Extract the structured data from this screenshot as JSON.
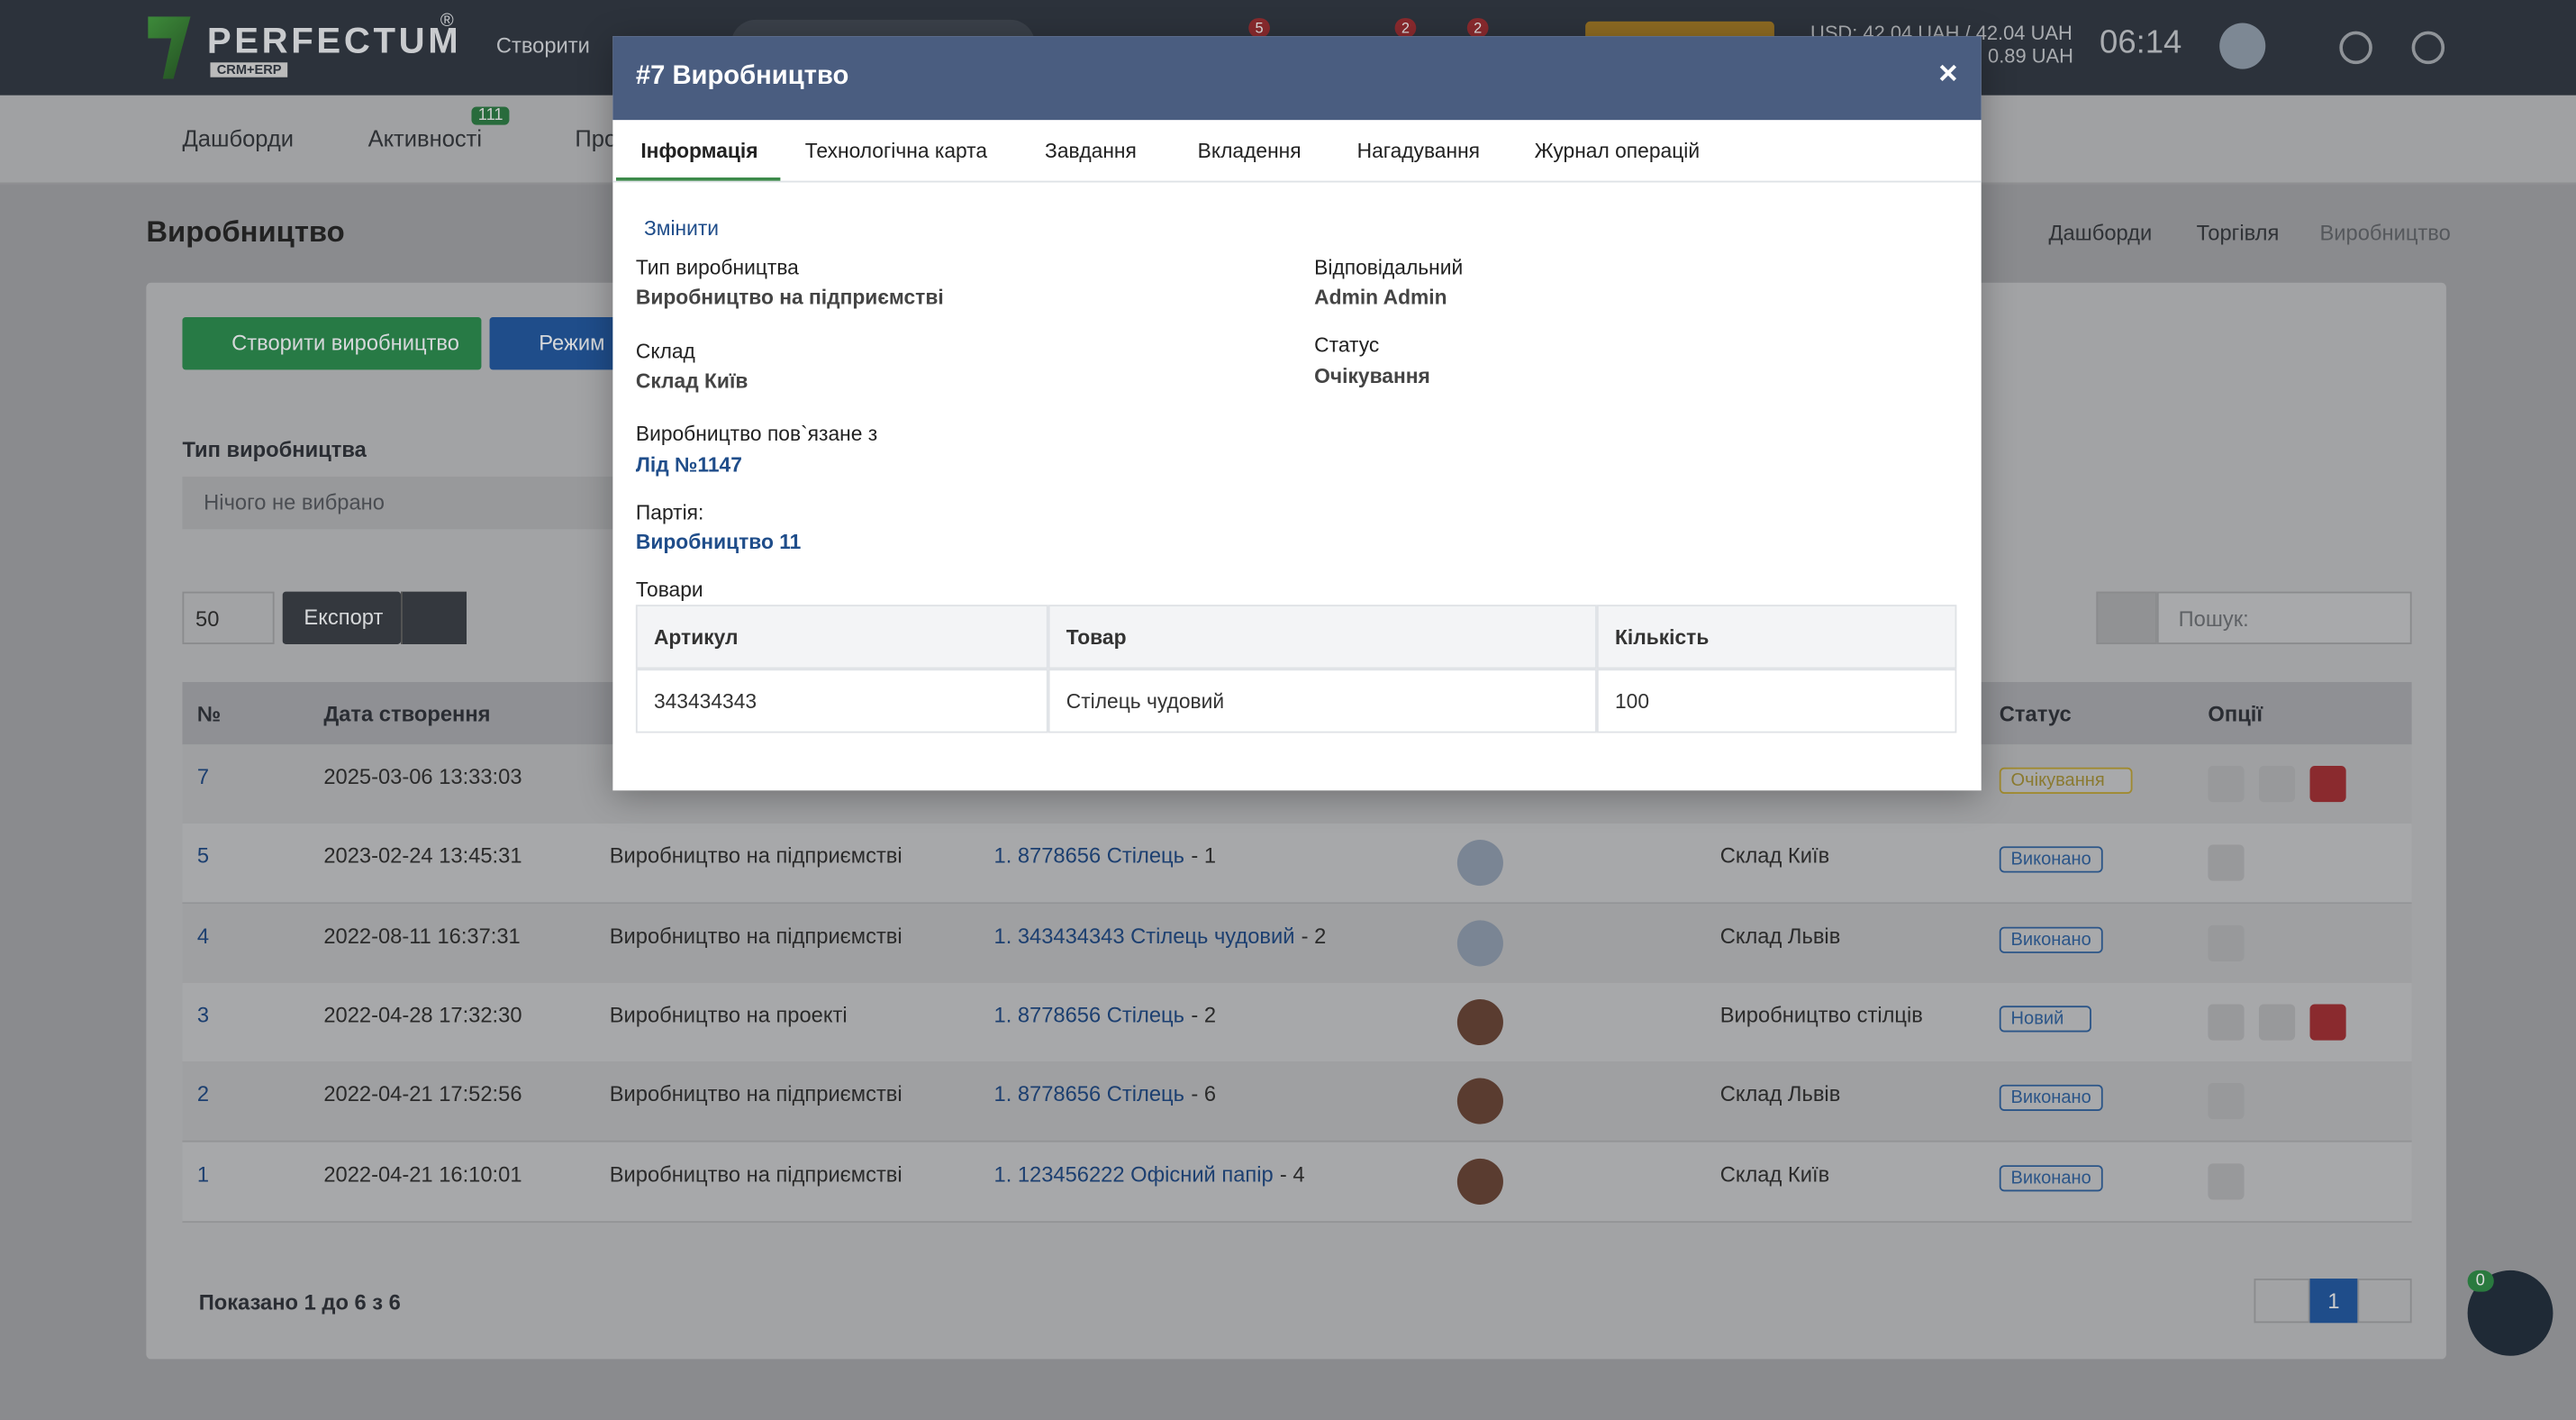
{
  "navbar": {
    "logo": "PERFECTUM",
    "logo_reg": "®",
    "logo_sub": "CRM+ERP",
    "create": "Створити",
    "badges": [
      "5",
      "2",
      "2"
    ],
    "currency_1": "USD: 42.04 UAH / 42.04 UAH",
    "currency_2": "0.89 UAH",
    "time": "06:14"
  },
  "subnav": {
    "items": [
      "Дашборди",
      "Активності",
      "Про"
    ],
    "activity_badge": "111"
  },
  "page": {
    "title": "Виробництво",
    "breadcrumbs": [
      "Дашборди",
      "Торгівля",
      "Виробництво"
    ],
    "create_button": "Створити виробництво",
    "mode_button": "Режим",
    "filter_label": "Тип виробництва",
    "filter_placeholder": "Нічого не вибрано",
    "page_size": "50",
    "export": "Експорт",
    "search_placeholder": "Пошук:",
    "table": {
      "headers": {
        "id": "№",
        "date": "Дата створення",
        "status": "Статус",
        "options": "Опції"
      },
      "rows": [
        {
          "id": "7",
          "date": "2025-03-06 13:33:03",
          "status": "Очікування"
        },
        {
          "id": "5",
          "date": "2023-02-24 13:45:31",
          "type": "Виробництво на підприємстві",
          "product": "1. 8778656 Стілець",
          "qty": "- 1",
          "warehouse": "Склад Київ",
          "status": "Виконано"
        },
        {
          "id": "4",
          "date": "2022-08-11 16:37:31",
          "type": "Виробництво на підприємстві",
          "product": "1. 343434343 Стілець чудовий",
          "qty": "- 2",
          "warehouse": "Склад Львів",
          "status": "Виконано"
        },
        {
          "id": "3",
          "date": "2022-04-28 17:32:30",
          "type": "Виробництво на проекті",
          "product": "1. 8778656 Стілець",
          "qty": "- 2",
          "warehouse": "Виробництво стілців",
          "status": "Новий"
        },
        {
          "id": "2",
          "date": "2022-04-21 17:52:56",
          "type": "Виробництво на підприємстві",
          "product": "1. 8778656 Стілець",
          "qty": "- 6",
          "warehouse": "Склад Львів",
          "status": "Виконано"
        },
        {
          "id": "1",
          "date": "2022-04-21 16:10:01",
          "type": "Виробництво на підприємстві",
          "product": "1. 123456222 Офісний папір",
          "qty": "- 4",
          "warehouse": "Склад Київ",
          "status": "Виконано"
        }
      ]
    },
    "footer": "Показано 1 до 6 з 6",
    "current_page": "1",
    "chat_badge": "0"
  },
  "modal": {
    "title": "#7 Виробництво",
    "close": "×",
    "tabs": [
      "Інформація",
      "Технологічна карта",
      "Завдання",
      "Вкладення",
      "Нагадування",
      "Журнал операцій"
    ],
    "edit": "Змінити",
    "fields": {
      "type_label": "Тип виробництва",
      "type_value": "Виробництво на підприємстві",
      "responsible_label": "Відповідальний",
      "responsible_value": "Admin Admin",
      "warehouse_label": "Склад",
      "warehouse_value": "Склад Київ",
      "status_label": "Статус",
      "status_value": "Очікування",
      "linked_label": "Виробництво пов`язане з",
      "linked_value": "Лід №1147",
      "batch_label": "Партія:",
      "batch_value": "Виробництво 11",
      "goods_label": "Товари"
    },
    "goods_table": {
      "headers": [
        "Артикул",
        "Товар",
        "Кількість"
      ],
      "rows": [
        [
          "343434343",
          "Стілець чудовий",
          "100"
        ]
      ]
    }
  }
}
